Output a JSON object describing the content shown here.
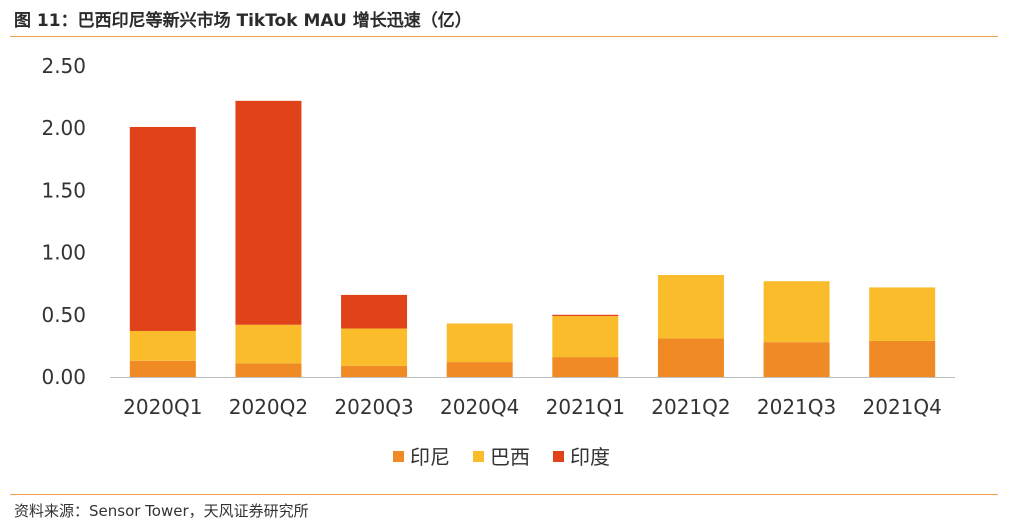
{
  "figure": {
    "title": "图 11：巴西印尼等新兴市场 TikTok MAU 增长迅速（亿）",
    "source": "资料来源：Sensor Tower，天风证券研究所"
  },
  "chart_data": {
    "type": "bar",
    "stacked": true,
    "categories": [
      "2020Q1",
      "2020Q2",
      "2020Q3",
      "2020Q4",
      "2021Q1",
      "2021Q2",
      "2021Q3",
      "2021Q4"
    ],
    "series": [
      {
        "name": "印尼",
        "color": "#f08a24",
        "values": [
          0.13,
          0.11,
          0.09,
          0.12,
          0.16,
          0.31,
          0.28,
          0.29
        ]
      },
      {
        "name": "巴西",
        "color": "#fbbc2c",
        "values": [
          0.24,
          0.31,
          0.3,
          0.31,
          0.33,
          0.51,
          0.49,
          0.43
        ]
      },
      {
        "name": "印度",
        "color": "#e0431a",
        "values": [
          1.64,
          1.8,
          0.27,
          0.0,
          0.01,
          0.0,
          0.0,
          0.0
        ]
      }
    ],
    "ylim": [
      0,
      2.5
    ],
    "yticks": [
      "0.00",
      "0.50",
      "1.00",
      "1.50",
      "2.00",
      "2.50"
    ],
    "grid": false,
    "legend": "bottom"
  }
}
